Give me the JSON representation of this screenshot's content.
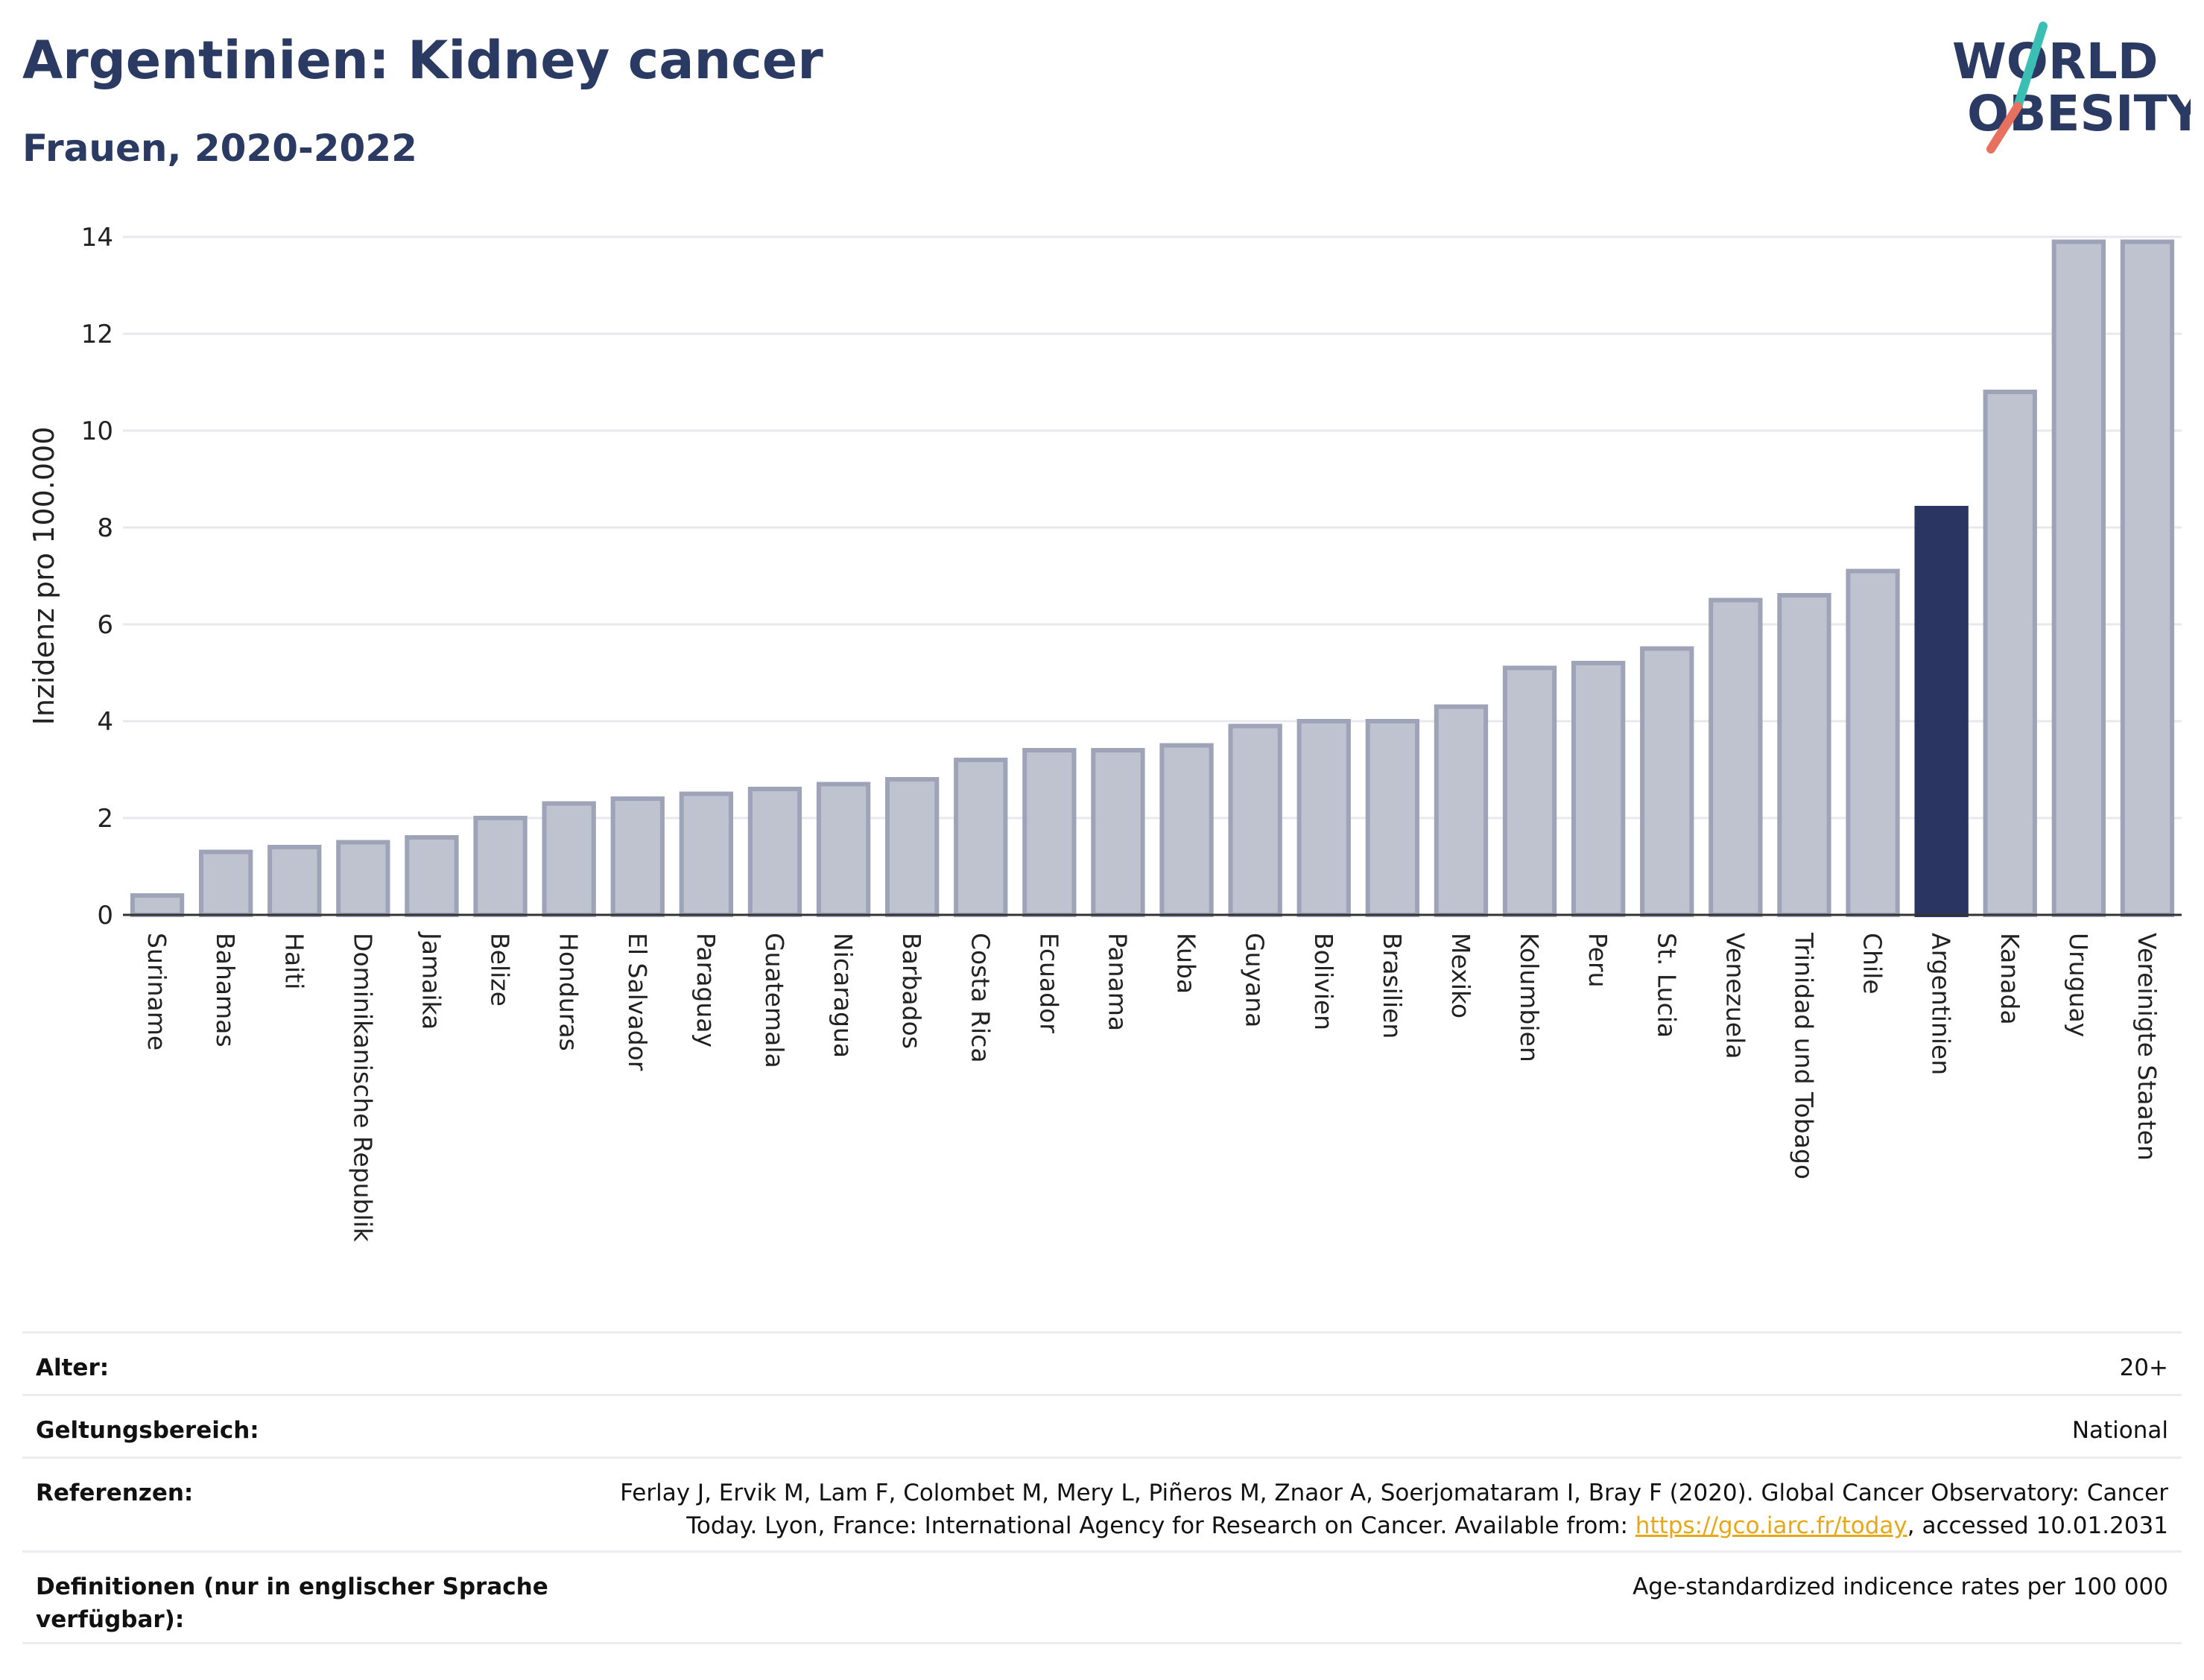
{
  "header": {
    "title": "Argentinien: Kidney cancer",
    "subtitle": "Frauen, 2020-2022"
  },
  "logo": {
    "line1": "WORLD",
    "line2": "OBESITY",
    "colors": {
      "text": "#2b3a63",
      "slash_top": "#3bbfb5",
      "slash_bottom": "#e8705f"
    }
  },
  "colors": {
    "bar_fill": "#bfc2cf",
    "bar_stroke": "#9ea3b8",
    "highlight": "#2b3562",
    "grid": "#e8e8ee",
    "axis": "#333333",
    "title": "#2b3a63",
    "link": "#e6a817"
  },
  "chart_data": {
    "type": "bar",
    "title": "Argentinien: Kidney cancer",
    "subtitle": "Frauen, 2020-2022",
    "ylabel": "Inzidenz pro 100.000",
    "ylim": [
      0,
      14
    ],
    "yticks": [
      "0",
      "2",
      "4",
      "6",
      "8",
      "10",
      "12",
      "14"
    ],
    "grid": true,
    "highlight": "Argentinien",
    "categories": [
      "Suriname",
      "Bahamas",
      "Haiti",
      "Dominikanische Republik",
      "Jamaika",
      "Belize",
      "Honduras",
      "El Salvador",
      "Paraguay",
      "Guatemala",
      "Nicaragua",
      "Barbados",
      "Costa Rica",
      "Ecuador",
      "Panama",
      "Kuba",
      "Guyana",
      "Bolivien",
      "Brasilien",
      "Mexiko",
      "Kolumbien",
      "Peru",
      "St. Lucia",
      "Venezuela",
      "Trinidad und Tobago",
      "Chile",
      "Argentinien",
      "Kanada",
      "Uruguay",
      "Vereinigte Staaten"
    ],
    "values": [
      0.4,
      1.3,
      1.4,
      1.5,
      1.6,
      2.0,
      2.3,
      2.4,
      2.5,
      2.6,
      2.7,
      2.8,
      3.2,
      3.4,
      3.4,
      3.5,
      3.9,
      4.0,
      4.0,
      4.3,
      5.1,
      5.2,
      5.5,
      6.5,
      6.6,
      7.1,
      8.4,
      10.8,
      13.9,
      13.9
    ]
  },
  "info": {
    "rows": [
      {
        "label": "Alter:",
        "value": "20+"
      },
      {
        "label": "Geltungsbereich:",
        "value": "National"
      },
      {
        "label": "Referenzen:",
        "value_line1": "Ferlay J, Ervik M, Lam F, Colombet M, Mery L, Piñeros M, Znaor A, Soerjomataram I, Bray F (2020). Global Cancer Observatory: Cancer",
        "value_line2_pre": "Today. Lyon, France: International Agency for Research on Cancer. Available from: ",
        "link_text": "https://gco.iarc.fr/today",
        "value_line2_post": ", accessed 10.01.2031"
      },
      {
        "label": "Definitionen (nur in englischer Sprache verfügbar):",
        "value": "Age-standardized indicence rates per 100 000"
      }
    ]
  }
}
